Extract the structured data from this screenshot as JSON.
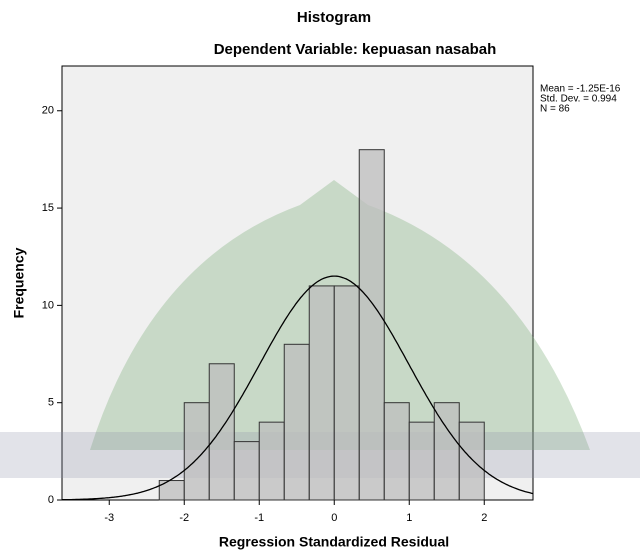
{
  "chart_data": {
    "type": "histogram",
    "title": "Histogram",
    "subtitle": "Dependent Variable: kepuasan nasabah",
    "x_label": "Regression Standardized Residual",
    "y_label": "Frequency",
    "bins": [
      -2.3333,
      -2,
      -1.6667,
      -1.3333,
      -1,
      -0.6667,
      -0.3333,
      0,
      0.3333,
      0.6667,
      1,
      1.3333,
      1.6667,
      2
    ],
    "values": [
      1,
      5,
      7,
      3,
      4,
      8,
      11,
      11,
      18,
      5,
      4,
      5,
      4
    ],
    "color": "#bdbdbd",
    "xlim": [
      -3.63,
      2.65
    ],
    "ylim": [
      0,
      22.3
    ],
    "xticks": [
      -3,
      -2,
      -1,
      0,
      1,
      2
    ],
    "yticks": [
      0,
      5,
      10,
      15,
      20
    ],
    "normal_curve": true,
    "stats": [
      {
        "label": "Mean = -1.25E-16",
        "value": -1.25e-16
      },
      {
        "label": "Std. Dev. = 0.994",
        "value": 0.994
      },
      {
        "label": "N = 86",
        "value": 86
      }
    ]
  }
}
